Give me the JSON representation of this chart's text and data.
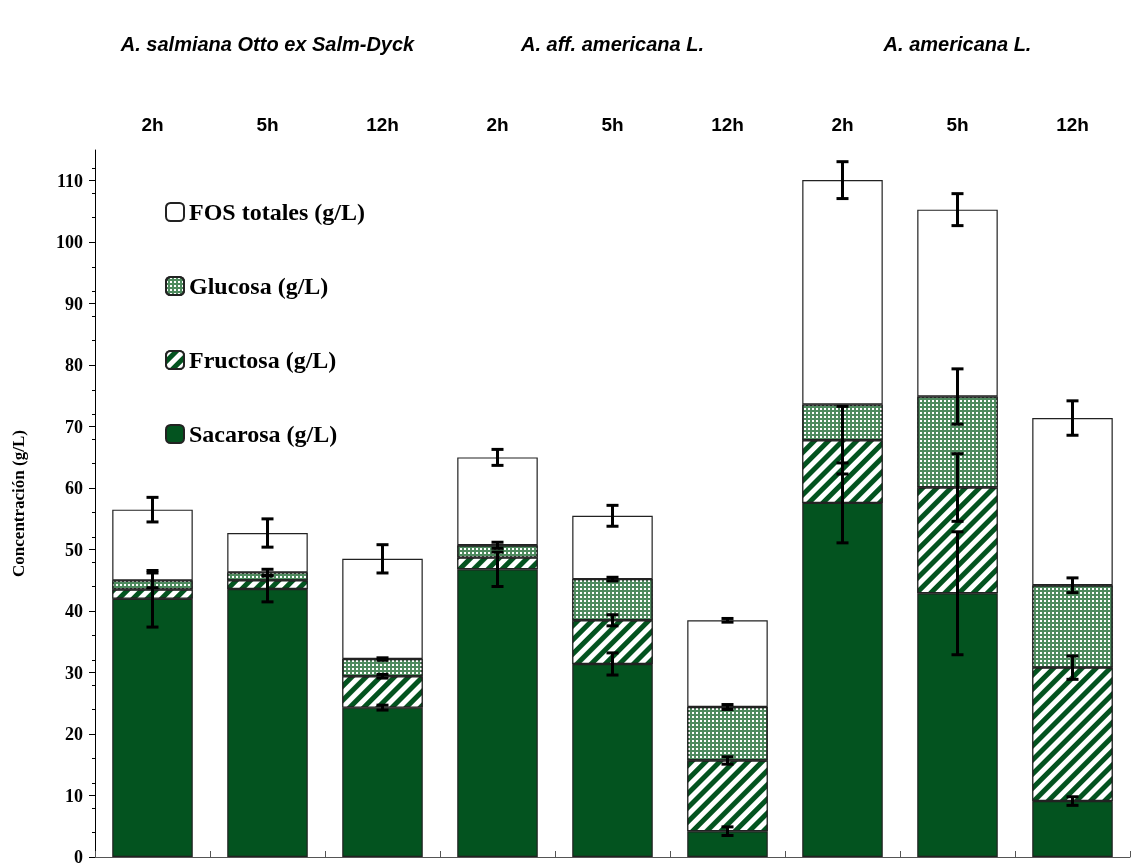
{
  "chart_data": {
    "type": "bar",
    "stacked": true,
    "ylabel": "Concentración (g/L)",
    "categories": [
      "2h",
      "5h",
      "12h",
      "2h",
      "5h",
      "12h",
      "2h",
      "5h",
      "12h"
    ],
    "annotations": [
      "A. salmiana Otto ex Salm-Dyck",
      "A. aff. americana L.",
      "A. americana L."
    ],
    "series": [
      {
        "name": "Sacarosa (g/L)",
        "color": "#03531f",
        "values": [
          42,
          43.6,
          24.3,
          46.8,
          31.4,
          4.2,
          57.6,
          42.9,
          9.1
        ],
        "errors": [
          4.6,
          2.1,
          0.4,
          2.8,
          1.8,
          0.7,
          6.5,
          10,
          0.7
        ]
      },
      {
        "name": "Fructosa (g/L)",
        "color": "#03531f",
        "values": [
          1.5,
          1.4,
          5.1,
          1.9,
          7.1,
          11.5,
          10.2,
          17.2,
          21.7
        ],
        "errors": [
          null,
          null,
          0.3,
          null,
          0.9,
          0.6,
          5.5,
          5.5,
          1.9
        ]
      },
      {
        "name": "Glucosa (g/L)",
        "color": "#4e8a5e",
        "values": [
          1.5,
          1.3,
          2.8,
          2.0,
          6.7,
          8.7,
          5.8,
          14.8,
          13.4
        ],
        "errors": [
          1.2,
          0.5,
          0.2,
          0.5,
          0.3,
          0.4,
          null,
          4.5,
          1.2
        ]
      },
      {
        "name": "FOS totales (g/L)",
        "color": "#ffffff",
        "values": [
          11.5,
          6.4,
          16.3,
          14.3,
          10.3,
          14.1,
          36.5,
          30.4,
          27.2
        ],
        "errors": [
          2,
          2.3,
          2.3,
          1.3,
          1.7,
          0.3,
          3,
          2.6,
          2.8
        ]
      }
    ],
    "ylim": [
      0,
      115
    ],
    "yticks": [
      0,
      10,
      20,
      30,
      40,
      50,
      60,
      70,
      80,
      90,
      100,
      110
    ],
    "grid": false,
    "legend": "top left"
  }
}
